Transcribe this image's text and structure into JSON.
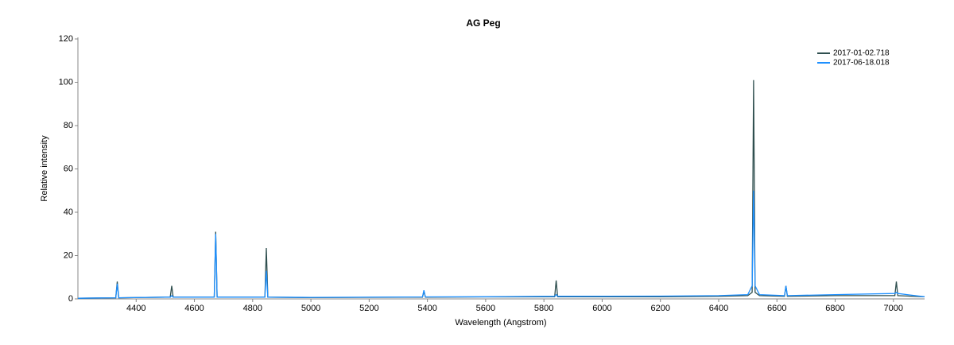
{
  "chart_data": {
    "type": "line",
    "title": "AG Peg",
    "x_label": "Wavelength (Angstrom)",
    "y_label": "Relative intensity",
    "x": [
      4200,
      4330,
      4335,
      4340,
      4500,
      4517,
      4522,
      4527,
      4668,
      4673,
      4678,
      4842,
      4847,
      4852,
      5000,
      5383,
      5388,
      5393,
      5600,
      5837,
      5842,
      5847,
      6200,
      6400,
      6500,
      6515,
      6520,
      6525,
      6540,
      6626,
      6631,
      6636,
      6800,
      7005,
      7010,
      7015,
      7107
    ],
    "series": [
      {
        "name": "2017-01-02.718",
        "color": "#2f4f4f",
        "values": [
          0.3,
          0.5,
          8,
          0.5,
          0.8,
          0.8,
          6,
          0.8,
          0.8,
          31,
          0.8,
          0.8,
          23.5,
          0.8,
          0.6,
          0.8,
          3.5,
          0.8,
          0.9,
          1,
          8.5,
          1,
          1,
          1.2,
          1.5,
          3,
          101,
          3,
          1.5,
          1.2,
          6,
          1.2,
          1.5,
          1.5,
          8,
          1.5,
          1
        ]
      },
      {
        "name": "2017-06-18.018",
        "color": "#1e90ff",
        "values": [
          0.3,
          0.5,
          7,
          0.5,
          0.8,
          0.8,
          1.5,
          0.8,
          0.8,
          30,
          0.8,
          0.8,
          13,
          0.8,
          0.7,
          0.9,
          4,
          0.9,
          1,
          1.2,
          2,
          1.2,
          1.3,
          1.5,
          2,
          6,
          50,
          6,
          2,
          1.5,
          6,
          1.5,
          2,
          2.5,
          3,
          2.5,
          1
        ]
      }
    ],
    "xlim": [
      4200,
      7107
    ],
    "xticks": [
      4400,
      4600,
      4800,
      5000,
      5200,
      5400,
      5600,
      5800,
      6000,
      6200,
      6400,
      6600,
      6800,
      7000
    ],
    "ylim": [
      0,
      120
    ],
    "yticks": [
      0,
      20,
      40,
      60,
      80,
      100,
      120
    ],
    "grid": false,
    "legend": "top-right"
  }
}
